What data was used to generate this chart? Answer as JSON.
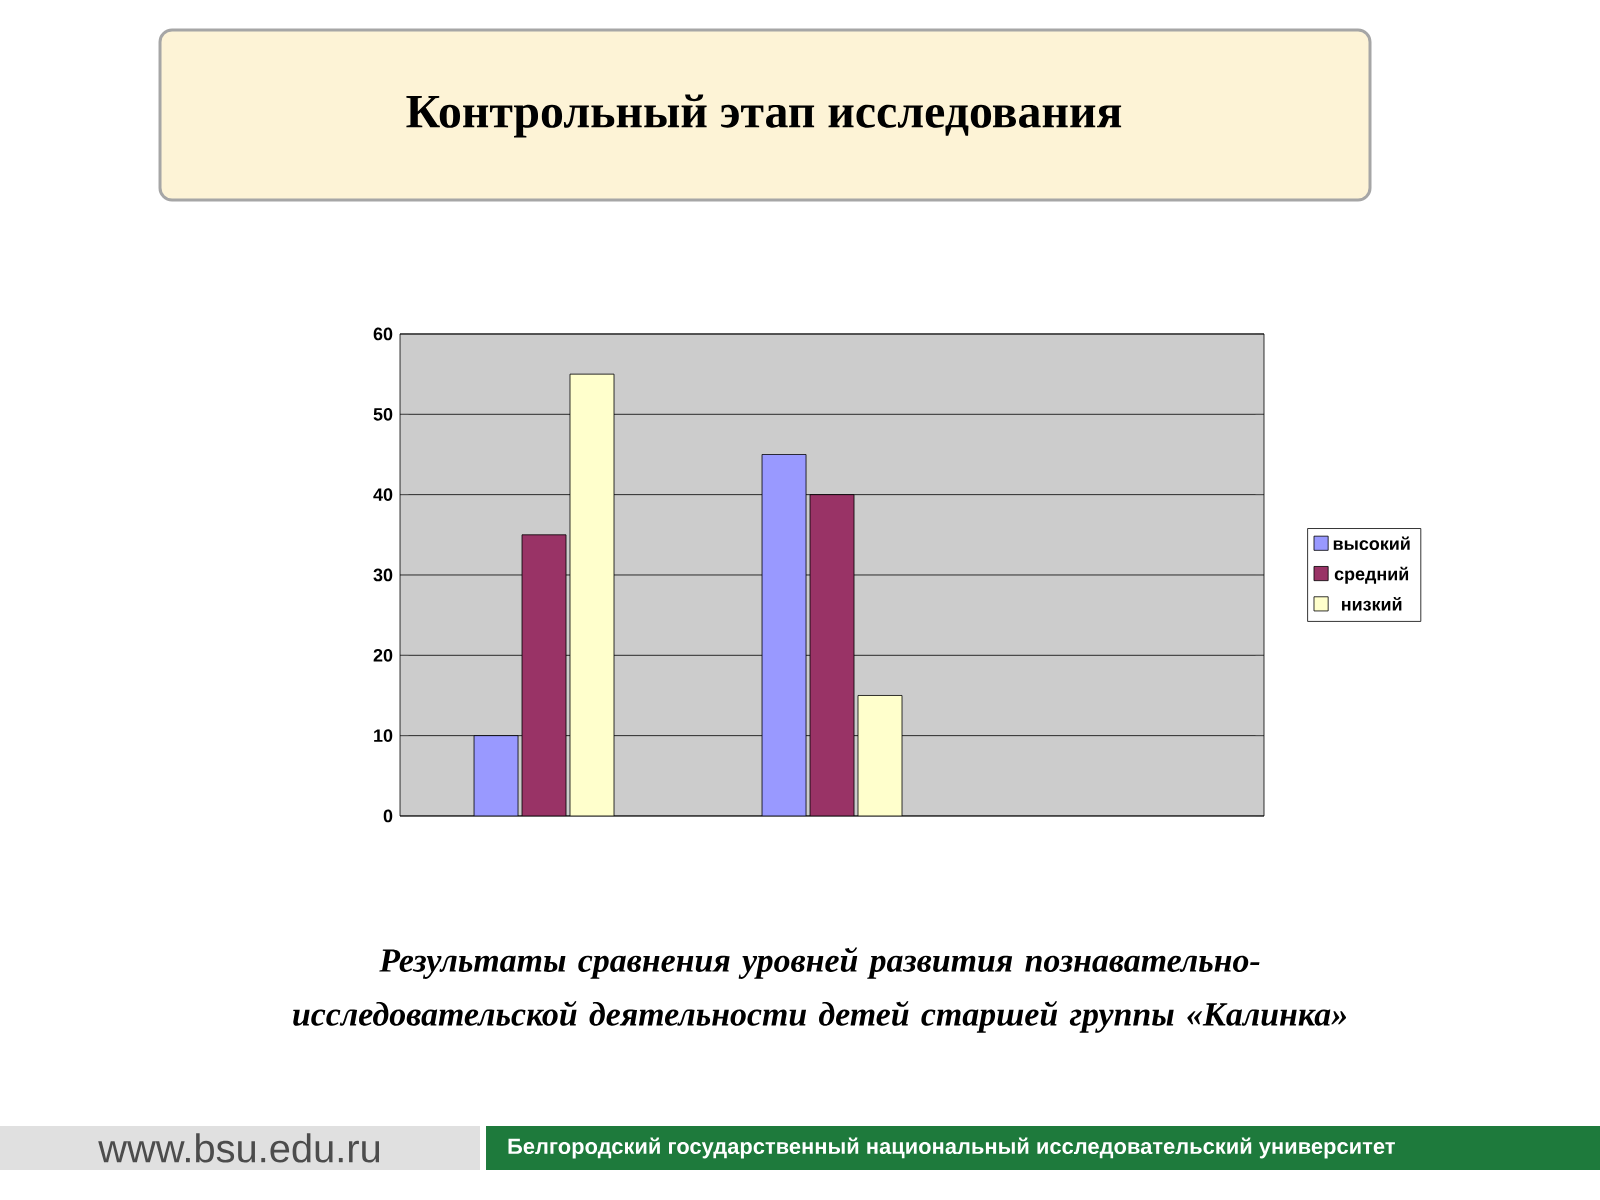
{
  "chart_data": {
    "type": "bar",
    "title": "Контрольный этап исследования",
    "categories": [
      null,
      null,
      null
    ],
    "series": [
      {
        "name": "высокий",
        "color": "#9999ff",
        "values": [
          10,
          45,
          null
        ]
      },
      {
        "name": "средний",
        "color": "#993366",
        "values": [
          35,
          40,
          null
        ]
      },
      {
        "name": "низкий",
        "color": "#ffffcc",
        "values": [
          55,
          15,
          null
        ]
      }
    ],
    "ylim": [
      0,
      60
    ],
    "yticks": [
      0,
      10,
      20,
      30,
      40,
      50,
      60
    ],
    "grid": "y",
    "legend": "right",
    "tick_labels": "y",
    "annotations": [
      "Результаты сравнения уровней развития познавательно-исследовательской деятельности детей  старшей группы «Калинка»",
      "www.bsu.edu.ru",
      "Белгородский государственный национальный исследовательский университет"
    ]
  }
}
